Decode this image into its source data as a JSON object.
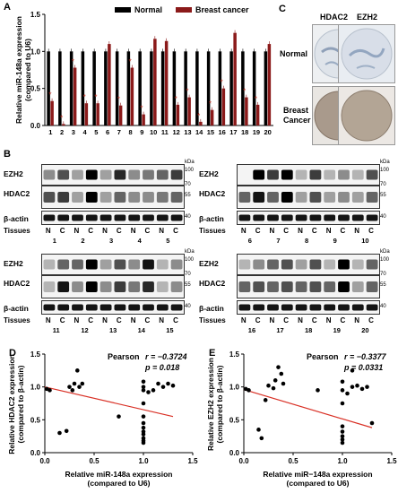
{
  "panel_labels": {
    "a": "A",
    "b": "B",
    "c": "C",
    "d": "D",
    "e": "E"
  },
  "colors": {
    "normal": "#000000",
    "cancer": "#8b1a1a",
    "regression": "#d93025",
    "star": "#c0392b"
  },
  "chart_data": [
    {
      "id": "A",
      "type": "bar",
      "ylabel": "Relative miR-148a expression\n(compared to U6)",
      "ylabel_lines": [
        "Relative miR-148a expression",
        "(compared to U6)"
      ],
      "ylim": [
        0,
        1.5
      ],
      "yticks": [
        "0.0",
        "0.5",
        "1.0",
        "1.5"
      ],
      "categories": [
        "1",
        "2",
        "3",
        "4",
        "5",
        "6",
        "7",
        "8",
        "9",
        "10",
        "11",
        "12",
        "13",
        "14",
        "15",
        "16",
        "17",
        "18",
        "19",
        "20"
      ],
      "legend": "top",
      "series": [
        {
          "name": "Normal",
          "values": [
            1,
            1,
            1,
            1,
            1,
            1,
            1,
            1,
            1,
            1,
            1,
            1,
            1,
            1,
            1,
            1,
            1,
            1,
            1,
            1
          ]
        },
        {
          "name": "Breast cancer",
          "values": [
            0.33,
            0.02,
            0.78,
            0.3,
            0.3,
            1.1,
            0.27,
            0.78,
            0.15,
            1.17,
            1.14,
            0.28,
            0.38,
            0.05,
            0.21,
            0.5,
            1.25,
            0.38,
            0.28,
            1.1
          ]
        }
      ],
      "star": "*",
      "star_on": [
        0,
        1,
        2,
        3,
        4,
        6,
        7,
        8,
        11,
        12,
        13,
        14,
        15,
        17,
        18
      ]
    },
    {
      "id": "D",
      "type": "scatter",
      "xlabel": "Relative miR-148a expression\n(compared to U6)",
      "xlabel_lines": [
        "Relative miR-148a expression",
        "(compared to U6)"
      ],
      "ylabel_lines": [
        "Relative HDAC2 expression",
        "(compared to β-actin)"
      ],
      "xlim": [
        0,
        1.5
      ],
      "ylim": [
        0,
        1.5
      ],
      "xticks": [
        "0.0",
        "0.5",
        "1.0",
        "1.5"
      ],
      "yticks": [
        "0.0",
        "0.5",
        "1.0",
        "1.5"
      ],
      "stat_label": "Pearson",
      "r_text": "r = −0.3724",
      "p_text": "p = 0.018",
      "points": [
        [
          0.02,
          0.97
        ],
        [
          0.05,
          0.95
        ],
        [
          0.15,
          0.3
        ],
        [
          0.22,
          0.33
        ],
        [
          0.25,
          1.0
        ],
        [
          0.28,
          0.95
        ],
        [
          0.3,
          1.05
        ],
        [
          0.33,
          1.25
        ],
        [
          0.35,
          1.0
        ],
        [
          0.38,
          1.05
        ],
        [
          0.75,
          0.55
        ],
        [
          1.0,
          0.95
        ],
        [
          1.0,
          0.75
        ],
        [
          1.0,
          0.55
        ],
        [
          1.0,
          0.45
        ],
        [
          1.0,
          0.38
        ],
        [
          1.0,
          0.32
        ],
        [
          1.0,
          0.28
        ],
        [
          1.0,
          0.22
        ],
        [
          1.0,
          0.18
        ],
        [
          1.0,
          0.15
        ],
        [
          1.0,
          1.0
        ],
        [
          1.0,
          1.08
        ],
        [
          1.05,
          0.92
        ],
        [
          1.1,
          0.95
        ],
        [
          1.15,
          1.05
        ],
        [
          1.2,
          1.0
        ],
        [
          1.25,
          1.05
        ],
        [
          1.3,
          1.02
        ]
      ],
      "fit": [
        [
          0,
          1.0
        ],
        [
          1.3,
          0.55
        ]
      ]
    },
    {
      "id": "E",
      "type": "scatter",
      "xlabel_lines": [
        "Relative miR−148a expression",
        "(compared to U6)"
      ],
      "ylabel_lines": [
        "Relative EZH2 expression",
        "(compared to β-actin)"
      ],
      "xlim": [
        0,
        1.5
      ],
      "ylim": [
        0,
        1.5
      ],
      "xticks": [
        "0.0",
        "0.5",
        "1.0",
        "1.5"
      ],
      "yticks": [
        "0.0",
        "0.5",
        "1.0",
        "1.5"
      ],
      "stat_label": "Pearson",
      "r_text": "r = −0.3377",
      "p_text": "p = 0.0331",
      "points": [
        [
          0.02,
          0.97
        ],
        [
          0.05,
          0.95
        ],
        [
          0.15,
          0.35
        ],
        [
          0.18,
          0.22
        ],
        [
          0.22,
          0.8
        ],
        [
          0.25,
          1.02
        ],
        [
          0.3,
          0.98
        ],
        [
          0.32,
          1.1
        ],
        [
          0.35,
          1.3
        ],
        [
          0.38,
          1.2
        ],
        [
          0.4,
          1.05
        ],
        [
          0.75,
          0.95
        ],
        [
          1.0,
          0.95
        ],
        [
          1.0,
          0.75
        ],
        [
          1.0,
          0.4
        ],
        [
          1.0,
          0.32
        ],
        [
          1.0,
          0.25
        ],
        [
          1.0,
          0.2
        ],
        [
          1.0,
          0.15
        ],
        [
          1.0,
          1.08
        ],
        [
          1.05,
          0.9
        ],
        [
          1.1,
          1.25
        ],
        [
          1.1,
          1.0
        ],
        [
          1.15,
          1.02
        ],
        [
          1.2,
          0.97
        ],
        [
          1.25,
          1.0
        ],
        [
          1.3,
          0.45
        ]
      ],
      "fit": [
        [
          0,
          0.96
        ],
        [
          1.3,
          0.38
        ]
      ]
    }
  ],
  "blots": {
    "ezh2": "EZH2",
    "hdac2": "HDAC2",
    "actin": "β-actin",
    "tissues": "Tissues",
    "n": "N",
    "c": "C",
    "kda": "kDa",
    "mw": [
      "100",
      "70",
      "55",
      "40"
    ],
    "top_left_nums": [
      "1",
      "2",
      "3",
      "4",
      "5"
    ],
    "top_right_nums": [
      "6",
      "7",
      "8",
      "9",
      "10"
    ],
    "bottom_left_nums": [
      "11",
      "12",
      "13",
      "14",
      "15"
    ],
    "bottom_right_nums": [
      "16",
      "17",
      "18",
      "19",
      "20"
    ]
  },
  "ihc": {
    "col1": "HDAC2",
    "col2": "EZH2",
    "row1": "Normal",
    "row2_line1": "Breast",
    "row2_line2": "Cancer"
  }
}
